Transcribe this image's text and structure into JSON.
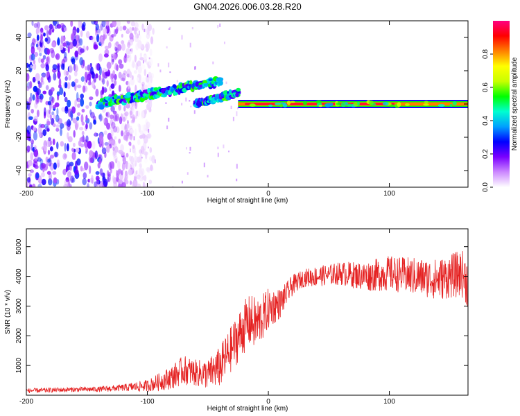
{
  "title": "GN04.2026.006.03.28.R20",
  "chart_data": [
    {
      "type": "heatmap",
      "xlabel": "Height of straight line (km)",
      "ylabel": "Frequency (Hz)",
      "xlim": [
        -200,
        165
      ],
      "ylim": [
        -50,
        50
      ],
      "xticks": [
        "-200",
        "-100",
        "0",
        "100"
      ],
      "yticks": [
        "-40",
        "-20",
        "0",
        "20",
        "40"
      ],
      "colorbar": {
        "label": "Normalized spectral amplitude",
        "range": [
          0,
          1
        ],
        "ticks": [
          "0.0",
          "0.2",
          "0.4",
          "0.6",
          "0.8"
        ],
        "colormap": [
          "#ffffff",
          "#cc88ff",
          "#7a00ff",
          "#0000ff",
          "#00a0ff",
          "#00ffd0",
          "#00ff00",
          "#c8ff00",
          "#ffff00",
          "#ff8000",
          "#ff0000",
          "#ff0080"
        ]
      },
      "features": [
        {
          "name": "broadband noise",
          "x_range": [
            -200,
            -110
          ],
          "freq_range": [
            -50,
            50
          ],
          "amplitude": 0.15
        },
        {
          "name": "upper track",
          "x_start": -140,
          "x_end": -40,
          "freq_start": 0,
          "freq_end": 14,
          "amplitude": 0.45
        },
        {
          "name": "lower track",
          "x_start": -60,
          "x_end": -25,
          "freq_start": 0,
          "freq_end": 7,
          "amplitude": 0.45
        },
        {
          "name": "main band",
          "x_range": [
            -25,
            165
          ],
          "freq": 0,
          "amplitude": 0.95
        }
      ]
    },
    {
      "type": "line",
      "xlabel": "Height of straight line (km)",
      "ylabel": "SNR (10 * v/v)",
      "xlim": [
        -200,
        165
      ],
      "ylim": [
        0,
        5600
      ],
      "xticks": [
        "-200",
        "-100",
        "0",
        "100"
      ],
      "yticks": [
        "1000",
        "2000",
        "3000",
        "4000",
        "5000"
      ],
      "color": "#e52222",
      "x": [
        -200,
        -180,
        -160,
        -140,
        -120,
        -100,
        -90,
        -80,
        -70,
        -60,
        -50,
        -40,
        -30,
        -20,
        -15,
        -10,
        -5,
        0,
        5,
        10,
        15,
        20,
        25,
        30,
        40,
        50,
        60,
        70,
        80,
        90,
        100,
        110,
        120,
        130,
        140,
        150,
        160,
        165
      ],
      "y": [
        150,
        170,
        190,
        200,
        250,
        320,
        450,
        600,
        850,
        750,
        700,
        950,
        1600,
        2300,
        2500,
        2400,
        2600,
        2900,
        3000,
        3100,
        3400,
        3700,
        3850,
        3950,
        4000,
        4050,
        4100,
        4050,
        4000,
        4050,
        4100,
        4050,
        4000,
        3950,
        3900,
        4000,
        4100,
        3800
      ],
      "noise_amplitude": [
        80,
        80,
        80,
        90,
        120,
        200,
        300,
        400,
        500,
        450,
        500,
        700,
        800,
        900,
        900,
        900,
        800,
        700,
        600,
        500,
        400,
        350,
        300,
        300,
        350,
        350,
        400,
        450,
        500,
        550,
        600,
        600,
        650,
        650,
        700,
        750,
        800,
        900
      ]
    }
  ]
}
